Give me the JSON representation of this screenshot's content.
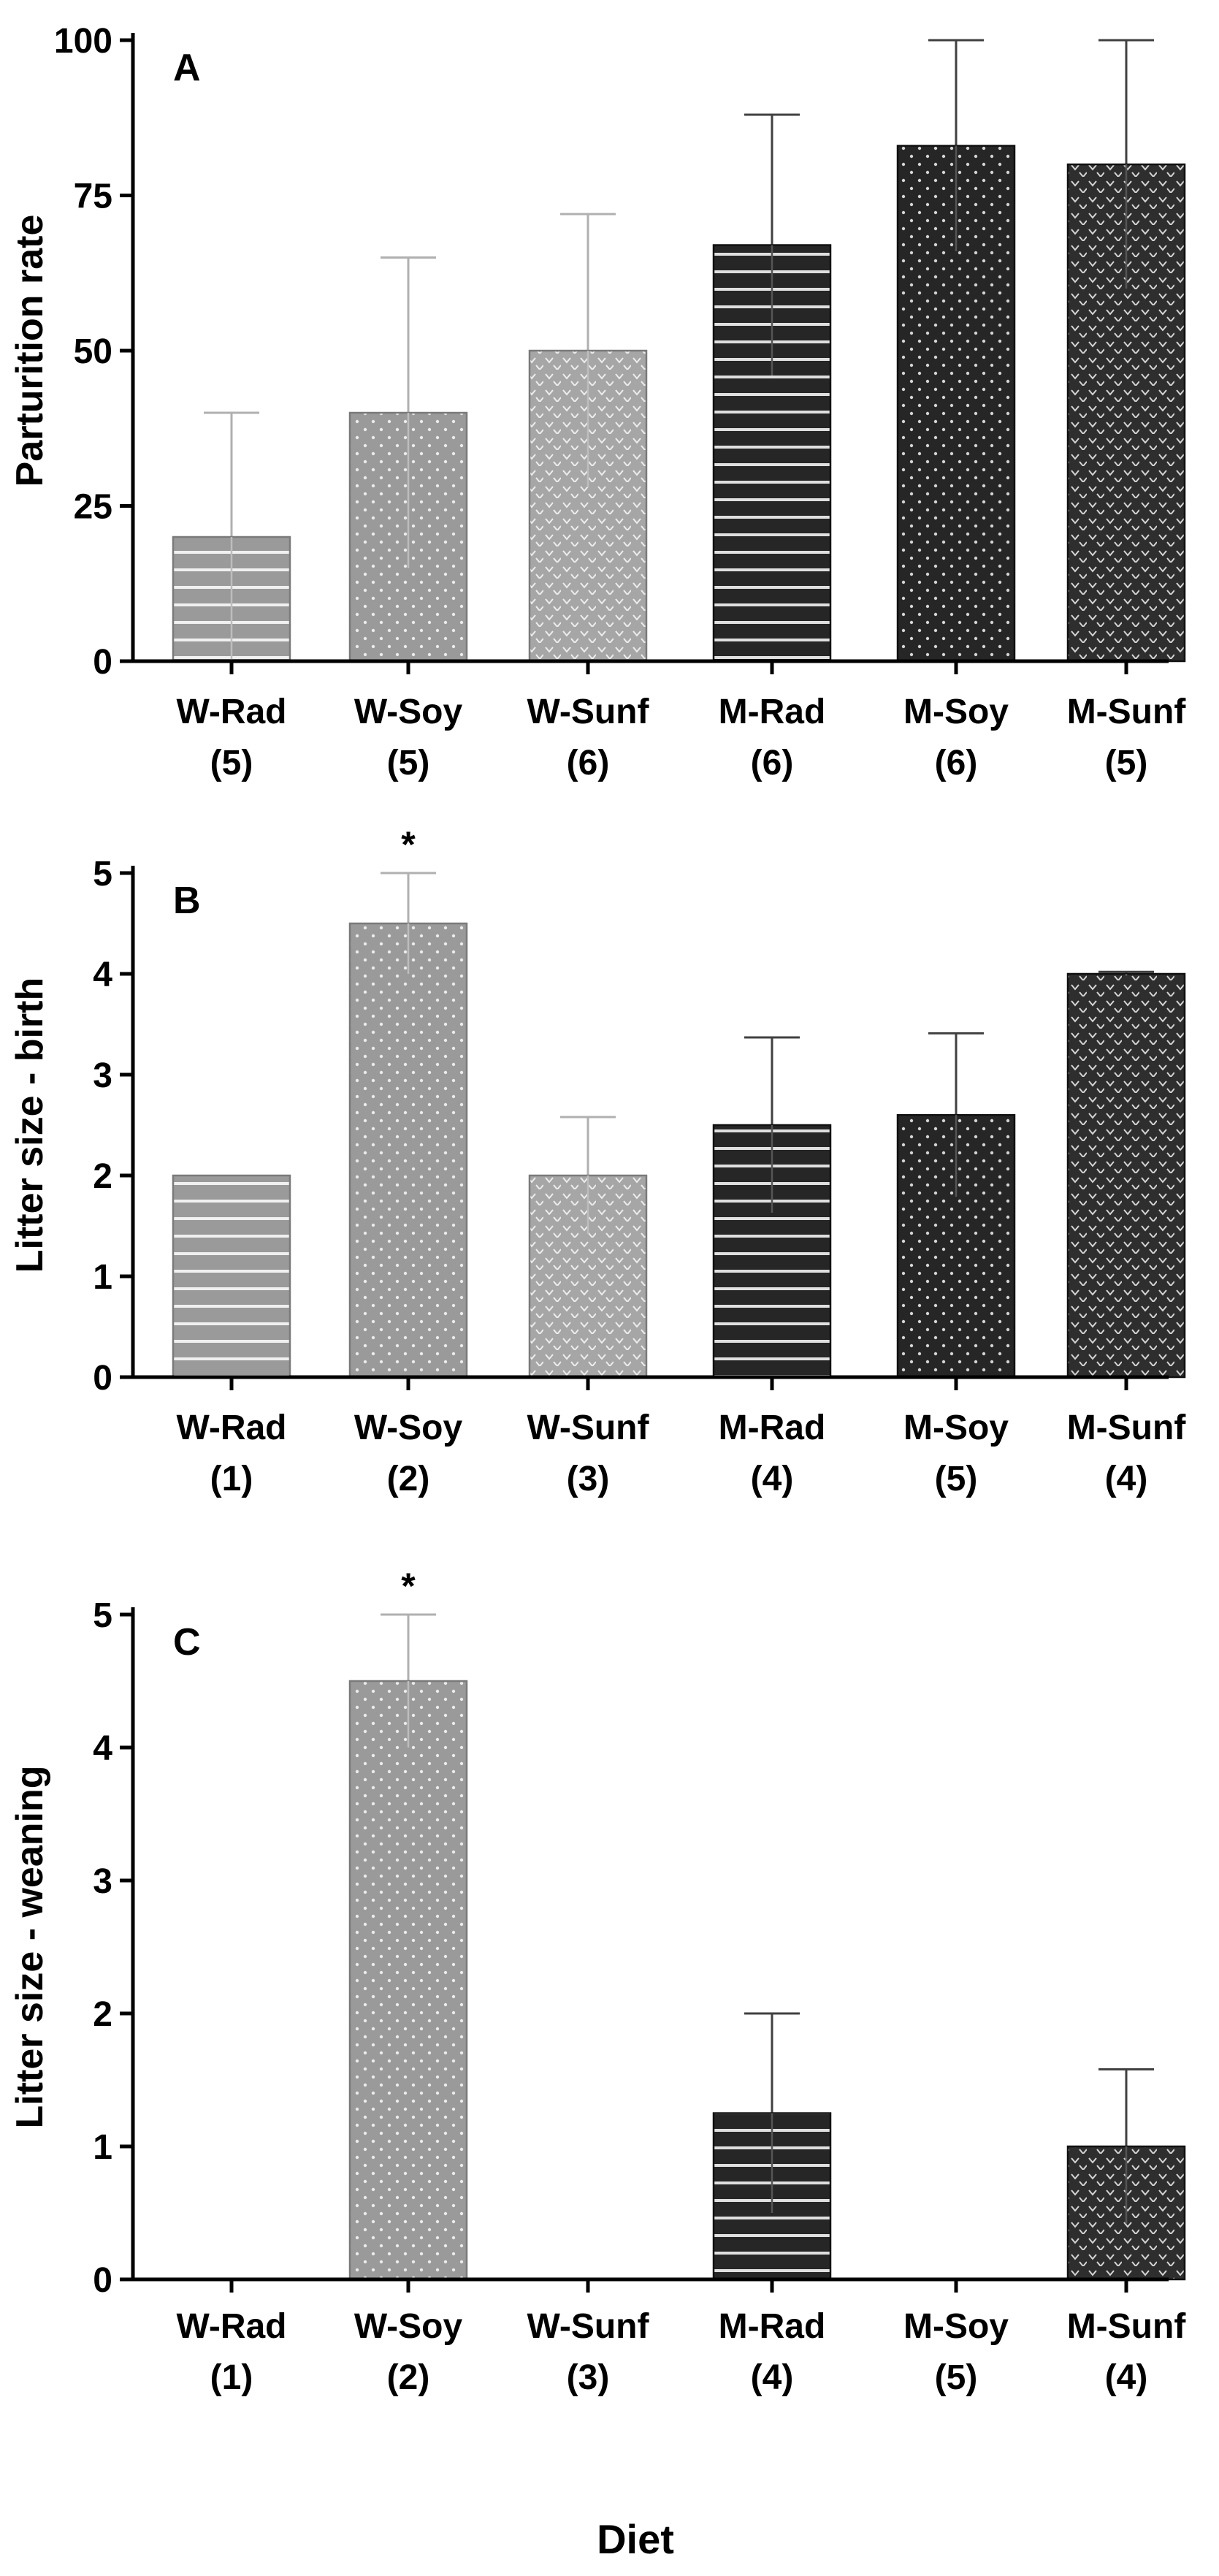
{
  "chart_data": [
    {
      "type": "bar",
      "panel_label": "A",
      "ylabel": "Parturition rate",
      "ylim": [
        0,
        100
      ],
      "yticks": [
        0,
        25,
        50,
        75,
        100
      ],
      "categories": [
        "W-Rad",
        "W-Soy",
        "W-Sunf",
        "M-Rad",
        "M-Soy",
        "M-Sunf"
      ],
      "n_labels": [
        "(5)",
        "(5)",
        "(6)",
        "(6)",
        "(6)",
        "(5)"
      ],
      "values": [
        20,
        40,
        50,
        67,
        83,
        80
      ],
      "errors": [
        20,
        25,
        22,
        21,
        17,
        20
      ],
      "significance": [
        "",
        "",
        "",
        "",
        "",
        ""
      ]
    },
    {
      "type": "bar",
      "panel_label": "B",
      "ylabel": "Litter size - birth",
      "ylim": [
        0,
        5
      ],
      "yticks": [
        0,
        1,
        2,
        3,
        4,
        5
      ],
      "categories": [
        "W-Rad",
        "W-Soy",
        "W-Sunf",
        "M-Rad",
        "M-Soy",
        "M-Sunf"
      ],
      "n_labels": [
        "(1)",
        "(2)",
        "(3)",
        "(4)",
        "(5)",
        "(4)"
      ],
      "values": [
        2.0,
        4.5,
        2.0,
        2.5,
        2.6,
        4.0
      ],
      "errors": [
        0,
        0.5,
        0.58,
        0.87,
        0.81,
        0.02
      ],
      "significance": [
        "",
        "*",
        "",
        "",
        "",
        ""
      ]
    },
    {
      "type": "bar",
      "panel_label": "C",
      "ylabel": "Litter size - weaning",
      "ylim": [
        0,
        5
      ],
      "yticks": [
        0,
        1,
        2,
        3,
        4,
        5
      ],
      "categories": [
        "W-Rad",
        "W-Soy",
        "W-Sunf",
        "M-Rad",
        "M-Soy",
        "M-Sunf"
      ],
      "n_labels": [
        "(1)",
        "(2)",
        "(3)",
        "(4)",
        "(5)",
        "(4)"
      ],
      "values": [
        0,
        4.5,
        0,
        1.25,
        0,
        1.0
      ],
      "errors": [
        0,
        0.5,
        0,
        0.75,
        0,
        0.58
      ],
      "significance": [
        "",
        "*",
        "",
        "",
        "",
        ""
      ]
    }
  ],
  "xlabel": "Diet",
  "bar_styles": [
    {
      "fill": "#9a9a9a",
      "pattern": "hlines",
      "stroke": "#7a7a7a"
    },
    {
      "fill": "#9a9a9a",
      "pattern": "dots",
      "stroke": "#7a7a7a"
    },
    {
      "fill": "#a6a6a6",
      "pattern": "chevrons",
      "stroke": "#7a7a7a"
    },
    {
      "fill": "#262626",
      "pattern": "hlines",
      "stroke": "#111111"
    },
    {
      "fill": "#262626",
      "pattern": "dots",
      "stroke": "#111111"
    },
    {
      "fill": "#2e2e2e",
      "pattern": "chevrons",
      "stroke": "#111111"
    }
  ],
  "colors": {
    "axis": "#000000",
    "light_error_bar": "#b0b0b0",
    "dark_error_bar": "#404040"
  }
}
